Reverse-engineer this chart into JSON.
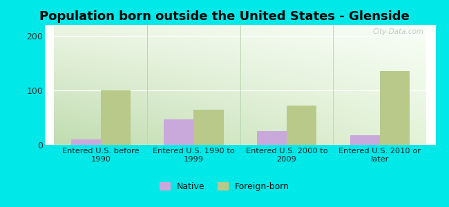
{
  "title": "Population born outside the United States - Glenside",
  "categories": [
    "Entered U.S. before\n1990",
    "Entered U.S. 1990 to\n1999",
    "Entered U.S. 2000 to\n2009",
    "Entered U.S. 2010 or\nlater"
  ],
  "native_values": [
    10,
    47,
    25,
    18
  ],
  "foreign_values": [
    100,
    65,
    72,
    135
  ],
  "native_color": "#c9a8dc",
  "foreign_color": "#b8c98a",
  "background_color": "#00e8e8",
  "ylim": [
    0,
    220
  ],
  "yticks": [
    0,
    100,
    200
  ],
  "bar_width": 0.32,
  "title_fontsize": 13,
  "legend_labels": [
    "Native",
    "Foreign-born"
  ],
  "watermark": "City-Data.com",
  "grad_color_bottom_left": "#c8e0b8",
  "grad_color_top_right": "#f8fff8"
}
